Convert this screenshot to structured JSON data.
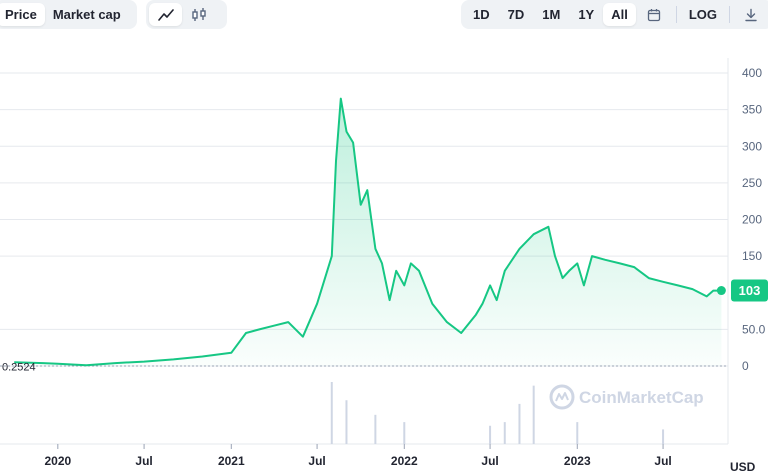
{
  "toolbar": {
    "metric_tabs": [
      {
        "label": "Price",
        "active": true
      },
      {
        "label": "Market cap",
        "active": false
      }
    ],
    "chart_type_icons": [
      "line-chart-icon",
      "candlestick-icon"
    ],
    "range_tabs": [
      {
        "label": "1D",
        "active": false
      },
      {
        "label": "7D",
        "active": false
      },
      {
        "label": "1M",
        "active": false
      },
      {
        "label": "1Y",
        "active": false
      },
      {
        "label": "All",
        "active": true
      }
    ],
    "calendar_icon": "calendar-icon",
    "log_label": "LOG",
    "download_icon": "download-icon"
  },
  "watermark": "CoinMarketCap",
  "colors": {
    "accent": "#16c784",
    "grid": "#e6e9ee",
    "volume": "#cfd6e4"
  },
  "chart_data": {
    "type": "area",
    "y_ticks": [
      "400",
      "350",
      "300",
      "250",
      "200",
      "150",
      "50.0",
      "0"
    ],
    "y_tick_values": [
      400,
      350,
      300,
      250,
      200,
      150,
      50,
      0
    ],
    "ylim": [
      0,
      400
    ],
    "x_ticks": [
      "2020",
      "Jul",
      "2021",
      "Jul",
      "2022",
      "Jul",
      "2023",
      "Jul"
    ],
    "x_tick_dates": [
      "2020-01",
      "2020-07",
      "2021-01",
      "2021-07",
      "2022-01",
      "2022-07",
      "2023-01",
      "2023-07"
    ],
    "start_value_label": "0.2524",
    "current_price": 103,
    "current_price_label": "103",
    "currency_label": "USD",
    "x": [
      "2019-10",
      "2019-12",
      "2020-01",
      "2020-03",
      "2020-05",
      "2020-07",
      "2020-09",
      "2020-11",
      "2021-01",
      "2021-02",
      "2021-03",
      "2021-04",
      "2021-05",
      "2021-06",
      "2021-07",
      "2021-08",
      "2021-08-10",
      "2021-08-20",
      "2021-09",
      "2021-09-15",
      "2021-10",
      "2021-10-15",
      "2021-11",
      "2021-11-15",
      "2021-12",
      "2021-12-15",
      "2022-01",
      "2022-01-15",
      "2022-02",
      "2022-03",
      "2022-04",
      "2022-05",
      "2022-06",
      "2022-06-15",
      "2022-07",
      "2022-07-15",
      "2022-08",
      "2022-09",
      "2022-10",
      "2022-11",
      "2022-11-15",
      "2022-12",
      "2022-12-15",
      "2023-01",
      "2023-01-15",
      "2023-02",
      "2023-03",
      "2023-04",
      "2023-05",
      "2023-06",
      "2023-07",
      "2023-08",
      "2023-09",
      "2023-10",
      "2023-10-15",
      "2023-11"
    ],
    "values": [
      5,
      4,
      3,
      1,
      4,
      6,
      9,
      13,
      18,
      45,
      50,
      55,
      60,
      40,
      85,
      150,
      280,
      365,
      320,
      305,
      220,
      240,
      160,
      140,
      90,
      130,
      110,
      140,
      130,
      85,
      60,
      45,
      70,
      85,
      110,
      90,
      130,
      160,
      180,
      190,
      150,
      120,
      130,
      140,
      110,
      150,
      145,
      140,
      135,
      120,
      115,
      110,
      105,
      95,
      103,
      103
    ],
    "volume_x": [
      "2021-08",
      "2021-09",
      "2021-11",
      "2022-01",
      "2022-07",
      "2022-08",
      "2022-09",
      "2022-10",
      "2023-01",
      "2023-07"
    ],
    "volume_values": [
      85,
      60,
      40,
      30,
      25,
      30,
      55,
      80,
      30,
      20
    ]
  }
}
